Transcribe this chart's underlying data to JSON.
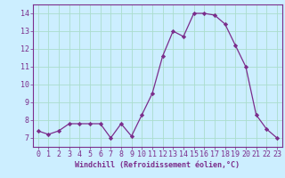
{
  "x": [
    0,
    1,
    2,
    3,
    4,
    5,
    6,
    7,
    8,
    9,
    10,
    11,
    12,
    13,
    14,
    15,
    16,
    17,
    18,
    19,
    20,
    21,
    22,
    23
  ],
  "y": [
    7.4,
    7.2,
    7.4,
    7.8,
    7.8,
    7.8,
    7.8,
    7.0,
    7.8,
    7.1,
    8.3,
    9.5,
    11.6,
    13.0,
    12.7,
    14.0,
    14.0,
    13.9,
    13.4,
    12.2,
    11.0,
    8.3,
    7.5,
    7.0
  ],
  "line_color": "#7b2d8b",
  "marker": "D",
  "marker_size": 2.2,
  "bg_color": "#cceeff",
  "grid_color": "#aaddcc",
  "xlabel": "Windchill (Refroidissement éolien,°C)",
  "xlim": [
    -0.5,
    23.5
  ],
  "ylim": [
    6.5,
    14.5
  ],
  "xticks": [
    0,
    1,
    2,
    3,
    4,
    5,
    6,
    7,
    8,
    9,
    10,
    11,
    12,
    13,
    14,
    15,
    16,
    17,
    18,
    19,
    20,
    21,
    22,
    23
  ],
  "yticks": [
    7,
    8,
    9,
    10,
    11,
    12,
    13,
    14
  ],
  "xlabel_fontsize": 6.0,
  "tick_fontsize": 6.0
}
